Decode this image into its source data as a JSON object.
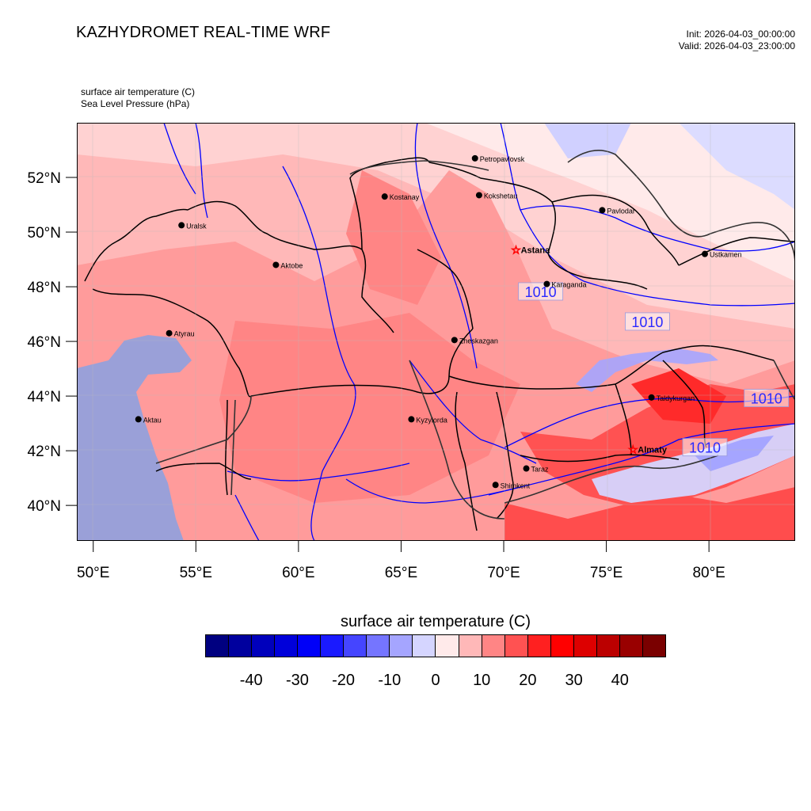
{
  "header": {
    "title": "KAZHYDROMET REAL-TIME WRF",
    "init": "Init: 2026-04-03_00:00:00",
    "valid": "Valid: 2026-04-03_23:00:00",
    "variable1": "surface air temperature   (C)",
    "variable2": "Sea Level Pressure   (hPa)"
  },
  "map": {
    "lon_range": [
      49.2,
      84.2
    ],
    "lat_range": [
      38.7,
      54.0
    ],
    "lon_ticks": [
      "50°E",
      "55°E",
      "60°E",
      "65°E",
      "70°E",
      "75°E",
      "80°E"
    ],
    "lat_ticks": [
      "40°N",
      "42°N",
      "44°N",
      "46°N",
      "48°N",
      "50°N",
      "52°N"
    ],
    "cities": [
      {
        "name": "Petropavlovsk",
        "lon": 68.6,
        "lat": 52.7,
        "capital": false
      },
      {
        "name": "Kostanay",
        "lon": 64.2,
        "lat": 51.3,
        "capital": false
      },
      {
        "name": "Kokshetau",
        "lon": 68.8,
        "lat": 51.35,
        "capital": false
      },
      {
        "name": "Pavlodar",
        "lon": 74.8,
        "lat": 50.8,
        "capital": false
      },
      {
        "name": "Uralsk",
        "lon": 54.3,
        "lat": 50.25,
        "capital": false
      },
      {
        "name": "Aktobe",
        "lon": 58.9,
        "lat": 48.8,
        "capital": false
      },
      {
        "name": "Astana",
        "lon": 70.6,
        "lat": 49.35,
        "capital": true
      },
      {
        "name": "Ustkamen",
        "lon": 79.8,
        "lat": 49.2,
        "capital": false
      },
      {
        "name": "Karaganda",
        "lon": 72.1,
        "lat": 48.1,
        "capital": false
      },
      {
        "name": "Atyrau",
        "lon": 53.7,
        "lat": 46.3,
        "capital": false
      },
      {
        "name": "Zheskazgan",
        "lon": 67.6,
        "lat": 46.05,
        "capital": false
      },
      {
        "name": "Taldykurgan",
        "lon": 77.2,
        "lat": 43.95,
        "capital": false
      },
      {
        "name": "Aktau",
        "lon": 52.2,
        "lat": 43.15,
        "capital": false
      },
      {
        "name": "Kyzylorda",
        "lon": 65.5,
        "lat": 43.15,
        "capital": false
      },
      {
        "name": "Almaty",
        "lon": 76.3,
        "lat": 42.05,
        "capital": true
      },
      {
        "name": "Taraz",
        "lon": 71.1,
        "lat": 41.35,
        "capital": false
      },
      {
        "name": "Shimkent",
        "lon": 69.6,
        "lat": 40.75,
        "capital": false
      }
    ],
    "isobar_labels": [
      {
        "text": "1010",
        "lon": 71.8,
        "lat": 47.8
      },
      {
        "text": "1010",
        "lon": 77.0,
        "lat": 46.7
      },
      {
        "text": "1010",
        "lon": 82.8,
        "lat": 43.9
      },
      {
        "text": "1010",
        "lon": 79.8,
        "lat": 42.1
      }
    ]
  },
  "colorbar": {
    "title": "surface air temperature  (C)",
    "colors": [
      "#000080",
      "#00009e",
      "#0000bc",
      "#0000da",
      "#0000f8",
      "#1a1aff",
      "#4545ff",
      "#7575ff",
      "#a5a5ff",
      "#d5d5ff",
      "#ffeaea",
      "#ffb8b8",
      "#ff8585",
      "#ff5252",
      "#ff2020",
      "#ff0000",
      "#dd0000",
      "#bb0000",
      "#990000",
      "#7a0000"
    ],
    "labels": [
      {
        "text": "-40",
        "pos": 2
      },
      {
        "text": "-30",
        "pos": 4
      },
      {
        "text": "-20",
        "pos": 6
      },
      {
        "text": "-10",
        "pos": 8
      },
      {
        "text": "0",
        "pos": 10
      },
      {
        "text": "10",
        "pos": 12
      },
      {
        "text": "20",
        "pos": 14
      },
      {
        "text": "30",
        "pos": 16
      },
      {
        "text": "40",
        "pos": 18
      }
    ]
  }
}
